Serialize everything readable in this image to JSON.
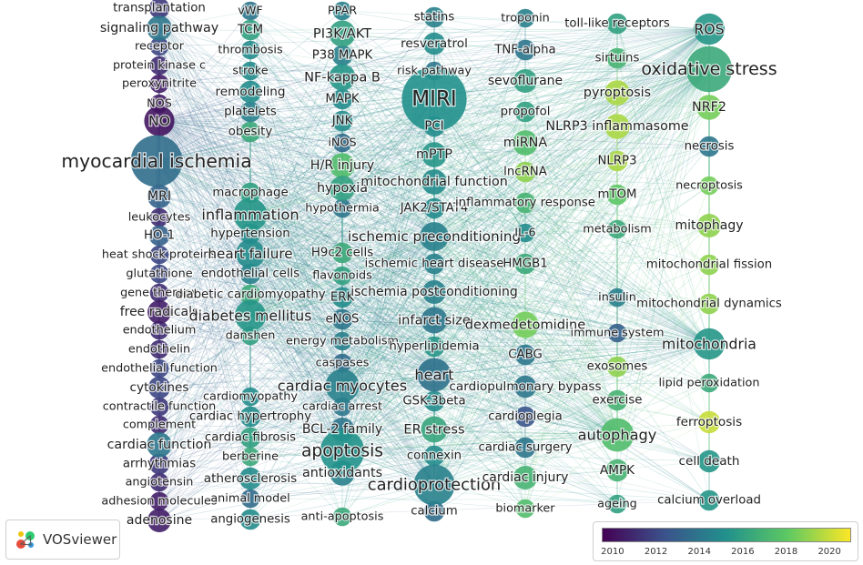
{
  "app": {
    "logo_text": "VOSviewer",
    "logo_icon": "vosviewer-logo-icon"
  },
  "legend": {
    "ticks": [
      "2010",
      "2012",
      "2014",
      "2016",
      "2018",
      "2020"
    ],
    "year_min": 2009.5,
    "year_max": 2021,
    "colors": [
      "#440154",
      "#3b528b",
      "#21918c",
      "#5ec962",
      "#fde725"
    ]
  },
  "network": {
    "nodes": [
      {
        "label": "transplantation",
        "weight": 6,
        "year": 2011.5
      },
      {
        "label": "signaling pathway",
        "weight": 9,
        "year": 2014
      },
      {
        "label": "receptor",
        "weight": 5,
        "year": 2012
      },
      {
        "label": "protein kinase c",
        "weight": 5,
        "year": 2011
      },
      {
        "label": "peroxynitrite",
        "weight": 5,
        "year": 2010.5
      },
      {
        "label": "NOS",
        "weight": 5,
        "year": 2010.5
      },
      {
        "label": "NO",
        "weight": 13,
        "year": 2010.2
      },
      {
        "label": "myocardial ischemia",
        "weight": 38,
        "year": 2013.6
      },
      {
        "label": "MRI",
        "weight": 8,
        "year": 2013.2
      },
      {
        "label": "leukocytes",
        "weight": 5,
        "year": 2011
      },
      {
        "label": "HO-1",
        "weight": 6,
        "year": 2013
      },
      {
        "label": "heat shock proteins",
        "weight": 5,
        "year": 2012
      },
      {
        "label": "glutathione",
        "weight": 5,
        "year": 2012
      },
      {
        "label": "gene therapy",
        "weight": 5,
        "year": 2011
      },
      {
        "label": "free radicals",
        "weight": 8,
        "year": 2010.5
      },
      {
        "label": "endothelium",
        "weight": 5,
        "year": 2011
      },
      {
        "label": "endothelin",
        "weight": 5,
        "year": 2011
      },
      {
        "label": "endothelial function",
        "weight": 5,
        "year": 2012
      },
      {
        "label": "cytokines",
        "weight": 7,
        "year": 2012
      },
      {
        "label": "contractile function",
        "weight": 5,
        "year": 2011.5
      },
      {
        "label": "complement",
        "weight": 5,
        "year": 2011
      },
      {
        "label": "cardiac function",
        "weight": 9,
        "year": 2014
      },
      {
        "label": "arrhythmias",
        "weight": 6,
        "year": 2011.5
      },
      {
        "label": "angiotensin",
        "weight": 5,
        "year": 2011
      },
      {
        "label": "adhesion molecules",
        "weight": 5,
        "year": 2010.5
      },
      {
        "label": "adenosine",
        "weight": 8,
        "year": 2010.5
      },
      {
        "label": "vWF",
        "weight": 5,
        "year": 2014
      },
      {
        "label": "TCM",
        "weight": 6,
        "year": 2016
      },
      {
        "label": "thrombosis",
        "weight": 5,
        "year": 2015
      },
      {
        "label": "stroke",
        "weight": 5,
        "year": 2015
      },
      {
        "label": "remodeling",
        "weight": 7,
        "year": 2015
      },
      {
        "label": "platelets",
        "weight": 6,
        "year": 2014.5
      },
      {
        "label": "obesity",
        "weight": 6,
        "year": 2016.5
      },
      {
        "label": "macrophage",
        "weight": 6,
        "year": 2016
      },
      {
        "label": "inflammation",
        "weight": 16,
        "year": 2015.5
      },
      {
        "label": "hypertension",
        "weight": 6,
        "year": 2015
      },
      {
        "label": "heart failure",
        "weight": 12,
        "year": 2015
      },
      {
        "label": "endothelial cells",
        "weight": 6,
        "year": 2014.5
      },
      {
        "label": "diabetic cardiomyopathy",
        "weight": 6,
        "year": 2016.5
      },
      {
        "label": "diabetes mellitus",
        "weight": 14,
        "year": 2015.5
      },
      {
        "label": "danshen",
        "weight": 5,
        "year": 2016
      },
      {
        "label": "cardiomyopathy",
        "weight": 5,
        "year": 2015
      },
      {
        "label": "cardiac hypertrophy",
        "weight": 6,
        "year": 2015
      },
      {
        "label": "cardiac fibrosis",
        "weight": 6,
        "year": 2016
      },
      {
        "label": "berberine",
        "weight": 5,
        "year": 2016.5
      },
      {
        "label": "atherosclerosis",
        "weight": 7,
        "year": 2015
      },
      {
        "label": "animal model",
        "weight": 5,
        "year": 2013.5
      },
      {
        "label": "angiogenesis",
        "weight": 6,
        "year": 2015
      },
      {
        "label": "PPAR",
        "weight": 5,
        "year": 2014.5
      },
      {
        "label": "PI3K/AKT",
        "weight": 10,
        "year": 2016
      },
      {
        "label": "P38 MAPK",
        "weight": 6,
        "year": 2014.5
      },
      {
        "label": "NF-kappa B",
        "weight": 10,
        "year": 2015.5
      },
      {
        "label": "MAPK",
        "weight": 6,
        "year": 2015
      },
      {
        "label": "JNK",
        "weight": 6,
        "year": 2015
      },
      {
        "label": "iNOS",
        "weight": 5,
        "year": 2013.5
      },
      {
        "label": "H/R injury",
        "weight": 9,
        "year": 2017.5
      },
      {
        "label": "hypoxia",
        "weight": 9,
        "year": 2016
      },
      {
        "label": "hypothermia",
        "weight": 5,
        "year": 2014
      },
      {
        "label": "H9c2 cells",
        "weight": 6,
        "year": 2016.5
      },
      {
        "label": "flavonoids",
        "weight": 5,
        "year": 2016
      },
      {
        "label": "ERK",
        "weight": 6,
        "year": 2015
      },
      {
        "label": "eNOS",
        "weight": 6,
        "year": 2014
      },
      {
        "label": "energy metabolism",
        "weight": 5,
        "year": 2014.5
      },
      {
        "label": "caspases",
        "weight": 5,
        "year": 2013.5
      },
      {
        "label": "cardiac myocytes",
        "weight": 16,
        "year": 2014.5
      },
      {
        "label": "cardiac arrest",
        "weight": 5,
        "year": 2014
      },
      {
        "label": "BCL-2 family",
        "weight": 8,
        "year": 2014
      },
      {
        "label": "apoptosis",
        "weight": 28,
        "year": 2015.3
      },
      {
        "label": "antioxidants",
        "weight": 9,
        "year": 2014.5
      },
      {
        "label": "anti-apoptosis",
        "weight": 5,
        "year": 2016.5
      },
      {
        "label": "statins",
        "weight": 6,
        "year": 2014.5
      },
      {
        "label": "resveratrol",
        "weight": 7,
        "year": 2015
      },
      {
        "label": "risk pathway",
        "weight": 5,
        "year": 2014
      },
      {
        "label": "MIRI",
        "weight": 60,
        "year": 2015.2
      },
      {
        "label": "PCI",
        "weight": 6,
        "year": 2015
      },
      {
        "label": "mPTP",
        "weight": 9,
        "year": 2015.5
      },
      {
        "label": "mitochondrial function",
        "weight": 9,
        "year": 2015
      },
      {
        "label": "JAK2/STAT4",
        "weight": 6,
        "year": 2015
      },
      {
        "label": "ischemic preconditioning",
        "weight": 12,
        "year": 2014.5
      },
      {
        "label": "ischemic heart disease",
        "weight": 6,
        "year": 2014.5
      },
      {
        "label": "ischemia postconditioning",
        "weight": 8,
        "year": 2014.5
      },
      {
        "label": "infarct size",
        "weight": 10,
        "year": 2014
      },
      {
        "label": "hyperlipidemia",
        "weight": 6,
        "year": 2015.5
      },
      {
        "label": "heart",
        "weight": 16,
        "year": 2013.8
      },
      {
        "label": "GSK-3beta",
        "weight": 6,
        "year": 2015
      },
      {
        "label": "ER stress",
        "weight": 10,
        "year": 2016.3
      },
      {
        "label": "connexin",
        "weight": 6,
        "year": 2015
      },
      {
        "label": "cardioprotection",
        "weight": 24,
        "year": 2014.5
      },
      {
        "label": "calcium",
        "weight": 6,
        "year": 2013.5
      },
      {
        "label": "troponin",
        "weight": 5,
        "year": 2014.5
      },
      {
        "label": "TNF-alpha",
        "weight": 6,
        "year": 2014
      },
      {
        "label": "sevoflurane",
        "weight": 8,
        "year": 2016
      },
      {
        "label": "propofol",
        "weight": 6,
        "year": 2016
      },
      {
        "label": "miRNA",
        "weight": 9,
        "year": 2017.5
      },
      {
        "label": "lncRNA",
        "weight": 6,
        "year": 2019
      },
      {
        "label": "inflammatory response",
        "weight": 6,
        "year": 2017
      },
      {
        "label": "IL-6",
        "weight": 5,
        "year": 2015
      },
      {
        "label": "HMGB1",
        "weight": 6,
        "year": 2016.5
      },
      {
        "label": "dexmedetomidine",
        "weight": 10,
        "year": 2018.5
      },
      {
        "label": "CABG",
        "weight": 6,
        "year": 2014
      },
      {
        "label": "cardiopulmonary bypass",
        "weight": 7,
        "year": 2014
      },
      {
        "label": "cardioplegia",
        "weight": 6,
        "year": 2012.5
      },
      {
        "label": "cardiac surgery",
        "weight": 6,
        "year": 2014
      },
      {
        "label": "cardiac injury",
        "weight": 8,
        "year": 2017
      },
      {
        "label": "biomarker",
        "weight": 5,
        "year": 2017.5
      },
      {
        "label": "toll-like receptors",
        "weight": 6,
        "year": 2016
      },
      {
        "label": "ROS",
        "weight": 14,
        "year": 2015.5
      },
      {
        "label": "sirtuins",
        "weight": 6,
        "year": 2017
      },
      {
        "label": "oxidative stress",
        "weight": 30,
        "year": 2016.5
      },
      {
        "label": "pyroptosis",
        "weight": 9,
        "year": 2019.5
      },
      {
        "label": "NRF2",
        "weight": 9,
        "year": 2018.5
      },
      {
        "label": "NLRP3 inflammasome",
        "weight": 9,
        "year": 2019.5
      },
      {
        "label": "necrosis",
        "weight": 6,
        "year": 2014
      },
      {
        "label": "NLRP3",
        "weight": 6,
        "year": 2019.5
      },
      {
        "label": "necroptosis",
        "weight": 5,
        "year": 2018.5
      },
      {
        "label": "mTOM",
        "weight": 6,
        "year": 2018
      },
      {
        "label": "mitophagy",
        "weight": 8,
        "year": 2019
      },
      {
        "label": "metabolism",
        "weight": 5,
        "year": 2016.5
      },
      {
        "label": "mitochondrial fission",
        "weight": 6,
        "year": 2019
      },
      {
        "label": "insulin",
        "weight": 5,
        "year": 2014.5
      },
      {
        "label": "mitochondrial dynamics",
        "weight": 6,
        "year": 2019
      },
      {
        "label": "immune system",
        "weight": 5,
        "year": 2013
      },
      {
        "label": "mitochondria",
        "weight": 14,
        "year": 2015.5
      },
      {
        "label": "exosomes",
        "weight": 6,
        "year": 2019
      },
      {
        "label": "lipid peroxidation",
        "weight": 5,
        "year": 2016.5
      },
      {
        "label": "exercise",
        "weight": 6,
        "year": 2017
      },
      {
        "label": "ferroptosis",
        "weight": 7,
        "year": 2020
      },
      {
        "label": "autophagy",
        "weight": 16,
        "year": 2017.5
      },
      {
        "label": "AMPK",
        "weight": 7,
        "year": 2017
      },
      {
        "label": "cell death",
        "weight": 7,
        "year": 2015.5
      },
      {
        "label": "ageing",
        "weight": 5,
        "year": 2016
      },
      {
        "label": "calcium overload",
        "weight": 6,
        "year": 2015.5
      }
    ]
  }
}
